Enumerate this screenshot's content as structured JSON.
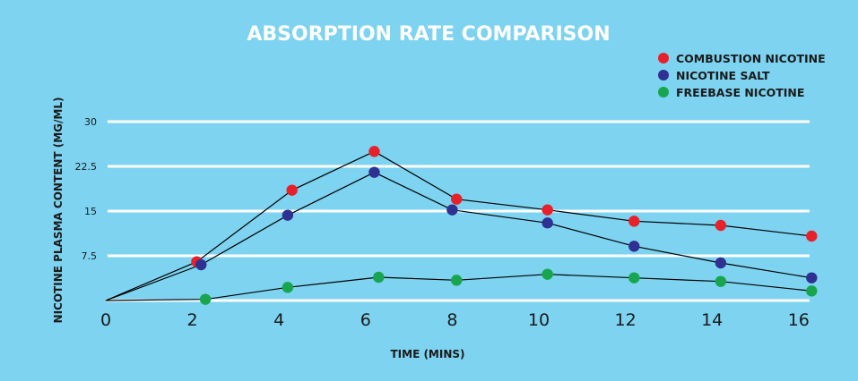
{
  "chart_data": {
    "type": "line",
    "title": "ABSORPTION RATE COMPARISON",
    "xlabel": "TIME (MINS)",
    "ylabel": "NICOTINE PLASMA CONTENT (MG/ML)",
    "xlim": [
      0,
      16.5
    ],
    "ylim": [
      0,
      30
    ],
    "x_ticks": [
      "0",
      "2",
      "4",
      "6",
      "8",
      "10",
      "12",
      "14",
      "16"
    ],
    "y_ticks": [
      "7.5",
      "15",
      "22.5",
      "30"
    ],
    "y_tick_values": [
      7.5,
      15,
      22.5,
      30
    ],
    "grid": true,
    "legend_position": "top-right",
    "series": [
      {
        "name": "COMBUSTION NICOTINE",
        "color": "#e8202a",
        "x": [
          2.1,
          4.3,
          6.2,
          8.1,
          10.2,
          12.2,
          14.2,
          16.3
        ],
        "y": [
          6.5,
          18.5,
          25.0,
          17.0,
          15.2,
          13.3,
          12.6,
          10.8
        ]
      },
      {
        "name": "NICOTINE SALT",
        "color": "#2e3192",
        "x": [
          2.2,
          4.2,
          6.2,
          8.0,
          10.2,
          12.2,
          14.2,
          16.3
        ],
        "y": [
          6.0,
          14.3,
          21.5,
          15.2,
          13.0,
          9.1,
          6.3,
          3.8
        ]
      },
      {
        "name": "FREEBASE NICOTINE",
        "color": "#18a550",
        "x": [
          2.3,
          4.2,
          6.3,
          8.1,
          10.2,
          12.2,
          14.2,
          16.3
        ],
        "y": [
          0.2,
          2.2,
          3.9,
          3.4,
          4.4,
          3.8,
          3.2,
          1.6
        ]
      }
    ]
  }
}
